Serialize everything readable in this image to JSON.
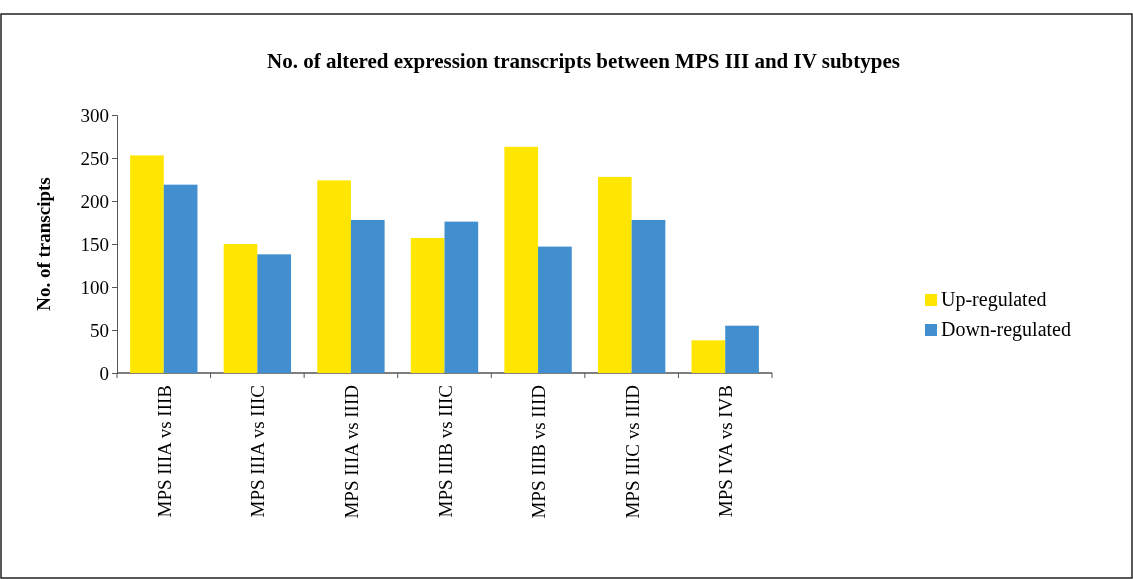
{
  "chart_data": {
    "type": "bar",
    "title": "No. of altered expression transcripts between MPS III and IV subtypes",
    "ylabel": "No. of transcipts",
    "categories": [
      "MPS IIIA vs IIIB",
      "MPS IIIA vs IIIC",
      "MPS IIIA vs IIID",
      "MPS IIIB vs IIIC",
      "MPS IIIB vs IIID",
      "MPS IIIC vs IIID",
      "MPS IVA vs IVB"
    ],
    "series": [
      {
        "name": "Up-regulated",
        "color": "#ffe600",
        "values": [
          253,
          150,
          224,
          157,
          263,
          228,
          38
        ]
      },
      {
        "name": "Down-regulated",
        "color": "#428fd0",
        "values": [
          219,
          138,
          178,
          176,
          147,
          178,
          55
        ]
      }
    ],
    "ylim": [
      0,
      300
    ],
    "yticks": [
      0,
      50,
      100,
      150,
      200,
      250,
      300
    ],
    "legend": "right"
  }
}
